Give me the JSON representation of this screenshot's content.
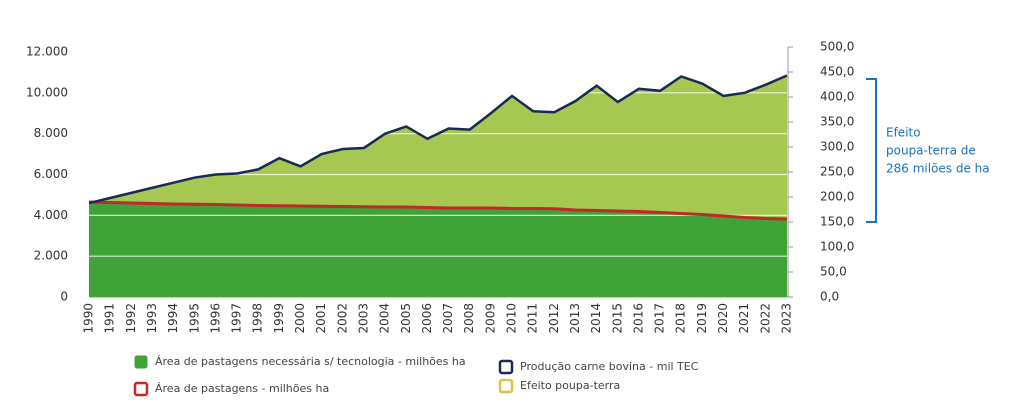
{
  "chart_data": {
    "type": "area",
    "x": [
      "1990",
      "1991",
      "1992",
      "1993",
      "1994",
      "1995",
      "1996",
      "1997",
      "1998",
      "1999",
      "2000",
      "2001",
      "2002",
      "2003",
      "2004",
      "2005",
      "2006",
      "2007",
      "2008",
      "2009",
      "2010",
      "2011",
      "2012",
      "2013",
      "2014",
      "2015",
      "2016",
      "2017",
      "2018",
      "2019",
      "2020",
      "2021",
      "2022",
      "2023"
    ],
    "series": [
      {
        "name": "Produção carne bovina - mil TEC",
        "color": "#1b2a55",
        "fill": "#a6c852",
        "axis": "y",
        "values": [
          4600,
          4850,
          5100,
          5350,
          5600,
          5850,
          6000,
          6050,
          6250,
          6800,
          6400,
          7000,
          7250,
          7300,
          8000,
          8350,
          7750,
          8250,
          8200,
          9000,
          9850,
          9100,
          9050,
          9600,
          10350,
          9550,
          10200,
          10100,
          10800,
          10450,
          9850,
          10000,
          10400,
          10850
        ]
      },
      {
        "name": "Área de pastagens - milhões ha",
        "color": "#c0282a",
        "fill": "#3fa337",
        "axis": "y2",
        "values": [
          190,
          189,
          188,
          187,
          186,
          185.5,
          185,
          184,
          183,
          182.5,
          182,
          181.5,
          181,
          180.5,
          180,
          180,
          179,
          178,
          178,
          178,
          177,
          177,
          176.5,
          174,
          173,
          172,
          171,
          169,
          167,
          165,
          162,
          159,
          157,
          156
        ]
      }
    ],
    "legend_items": [
      {
        "name": "Área de pastagens necessária s/ tecnologia - milhões ha",
        "color": "#3fa337"
      },
      {
        "name": "Área de pastagens - milhões ha",
        "color": "#c0282a"
      },
      {
        "name": "Produção carne bovina - mil TEC",
        "color": "#1b2a55"
      },
      {
        "name": "Efeito poupa-terra",
        "color": "#d9c34a"
      }
    ],
    "ylim": [
      0,
      12000
    ],
    "yticks": [
      {
        "value": 0,
        "label": "0"
      },
      {
        "value": 2000,
        "label": "2.000"
      },
      {
        "value": 4000,
        "label": "4.000"
      },
      {
        "value": 6000,
        "label": "6.000"
      },
      {
        "value": 8000,
        "label": "8.000"
      },
      {
        "value": 10000,
        "label": "10.000"
      },
      {
        "value": 12000,
        "label": "12.000"
      }
    ],
    "y2lim": [
      0,
      500
    ],
    "y2ticks": [
      {
        "value": 0,
        "label": "0,0"
      },
      {
        "value": 50,
        "label": "50,0"
      },
      {
        "value": 100,
        "label": "100,0"
      },
      {
        "value": 150,
        "label": "150,0"
      },
      {
        "value": 200,
        "label": "200,0"
      },
      {
        "value": 250,
        "label": "250,0"
      },
      {
        "value": 300,
        "label": "300,0"
      },
      {
        "value": 350,
        "label": "350,0"
      },
      {
        "value": 400,
        "label": "400,0"
      },
      {
        "value": 450,
        "label": "450,0"
      },
      {
        "value": 500,
        "label": "500,0"
      }
    ],
    "grid": true,
    "annotation": {
      "lines": [
        "Efeito",
        "poupa-terra de",
        "286 milões de ha"
      ],
      "y2_range": [
        150,
        436
      ],
      "color": "#1a72b8"
    }
  }
}
